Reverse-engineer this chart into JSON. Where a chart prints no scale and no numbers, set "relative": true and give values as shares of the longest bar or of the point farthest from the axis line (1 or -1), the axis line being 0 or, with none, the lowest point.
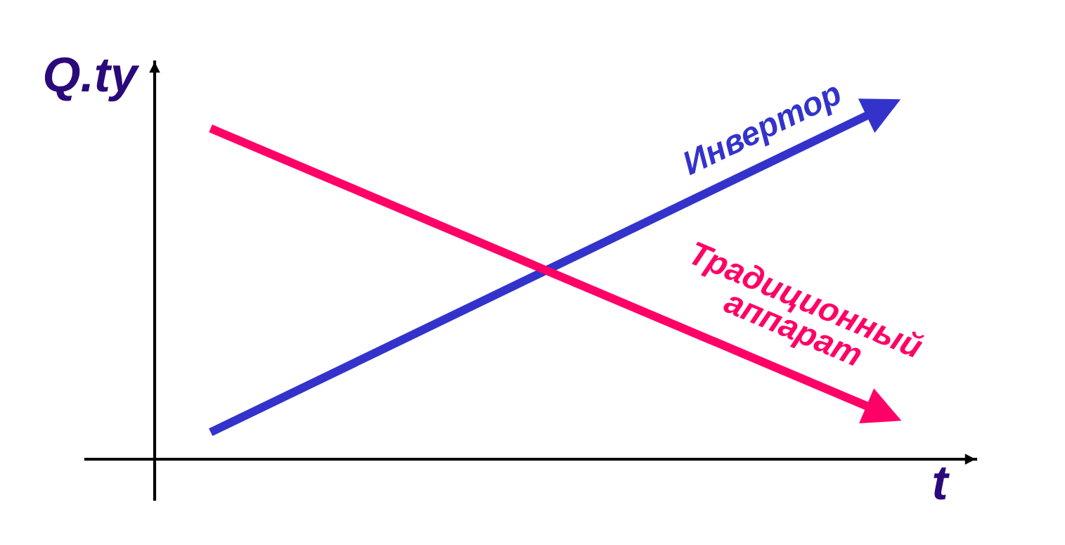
{
  "chart_data": {
    "type": "line",
    "relative": true,
    "xlabel": "t",
    "ylabel": "Q.ty",
    "categories": [
      null,
      null
    ],
    "series": [
      {
        "name": "Инвертор",
        "color": "#3333cc",
        "values": [
          0.084,
          1
        ]
      },
      {
        "name": "Традиционный аппарат",
        "color": "#ff0066",
        "values": [
          0.961,
          0.158
        ]
      }
    ]
  }
}
